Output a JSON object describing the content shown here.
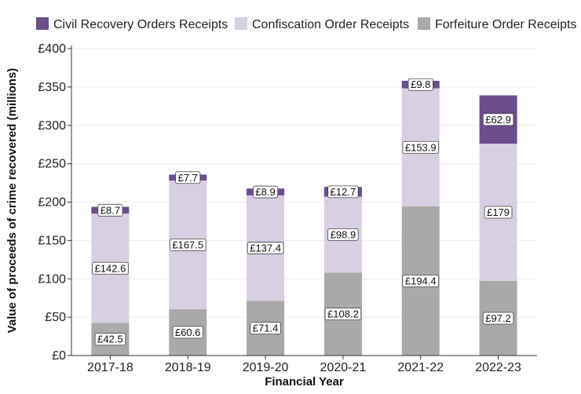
{
  "chart_data": {
    "type": "bar",
    "stacked": true,
    "title": "",
    "xlabel": "Financial Year",
    "ylabel": "Value of proceeds of crime recovered (millions)",
    "ylim": [
      0,
      400
    ],
    "yticks": [
      0,
      50,
      100,
      150,
      200,
      250,
      300,
      350,
      400
    ],
    "ytick_prefix": "£",
    "grid": true,
    "legend_position": "top",
    "categories": [
      "2017-18",
      "2018-19",
      "2019-20",
      "2020-21",
      "2021-22",
      "2022-23"
    ],
    "series": [
      {
        "name": "Forfeiture Order Receipts",
        "color": "#a9a9a9",
        "values": [
          42.5,
          60.6,
          71.4,
          108.2,
          194.4,
          97.2
        ],
        "labels": [
          "£42.5",
          "£60.6",
          "£71.4",
          "£108.2",
          "£194.4",
          "£97.2"
        ]
      },
      {
        "name": "Confiscation Order Receipts",
        "color": "#d8cfe3",
        "values": [
          142.6,
          167.5,
          137.4,
          98.9,
          153.9,
          179
        ],
        "labels": [
          "£142.6",
          "£167.5",
          "£137.4",
          "£98.9",
          "£153.9",
          "£179"
        ]
      },
      {
        "name": "Civil Recovery Orders Receipts",
        "color": "#6b4c8c",
        "values": [
          8.7,
          7.7,
          8.9,
          12.7,
          9.8,
          62.9
        ],
        "labels": [
          "£8.7",
          "£7.7",
          "£8.9",
          "£12.7",
          "£9.8",
          "£62.9"
        ]
      }
    ],
    "legend_order": [
      "Civil Recovery Orders Receipts",
      "Confiscation Order Receipts",
      "Forfeiture Order Receipts"
    ]
  }
}
